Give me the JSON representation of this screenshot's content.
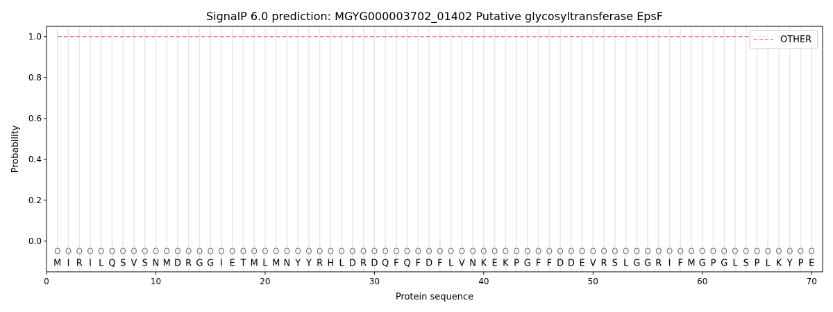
{
  "chart_data": {
    "type": "line",
    "title": "SignalP 6.0 prediction: MGYG000003702_01402 Putative glycosyltransferase EpsF",
    "xlabel": "Protein sequence",
    "ylabel": "Probability",
    "xlim": [
      0,
      71
    ],
    "ylim": [
      -0.15,
      1.05
    ],
    "xticks": [
      0,
      10,
      20,
      30,
      40,
      50,
      60,
      70
    ],
    "yticks": [
      0.0,
      0.2,
      0.4,
      0.6,
      0.8,
      1.0
    ],
    "ytick_labels": [
      "0.0",
      "0.2",
      "0.4",
      "0.6",
      "0.8",
      "1.0"
    ],
    "sequence": [
      "M",
      "I",
      "R",
      "I",
      "L",
      "Q",
      "S",
      "V",
      "S",
      "N",
      "M",
      "D",
      "R",
      "G",
      "G",
      "I",
      "E",
      "T",
      "M",
      "L",
      "M",
      "N",
      "Y",
      "Y",
      "R",
      "H",
      "L",
      "D",
      "R",
      "D",
      "Q",
      "F",
      "Q",
      "F",
      "D",
      "F",
      "L",
      "V",
      "N",
      "K",
      "E",
      "K",
      "P",
      "G",
      "F",
      "F",
      "D",
      "D",
      "E",
      "V",
      "R",
      "S",
      "L",
      "G",
      "G",
      "R",
      "I",
      "F",
      "M",
      "G",
      "P",
      "G",
      "L",
      "S",
      "P",
      "L",
      "K",
      "Y",
      "P",
      "E"
    ],
    "marker_label": "O",
    "marker_y": -0.05,
    "series": [
      {
        "name": "OTHER",
        "color": "#f08080",
        "style": "dashed",
        "x_range": [
          1,
          70
        ],
        "value": 1.0
      }
    ],
    "legend_placement": "top-right",
    "grid": "vertical lines at each residue"
  }
}
